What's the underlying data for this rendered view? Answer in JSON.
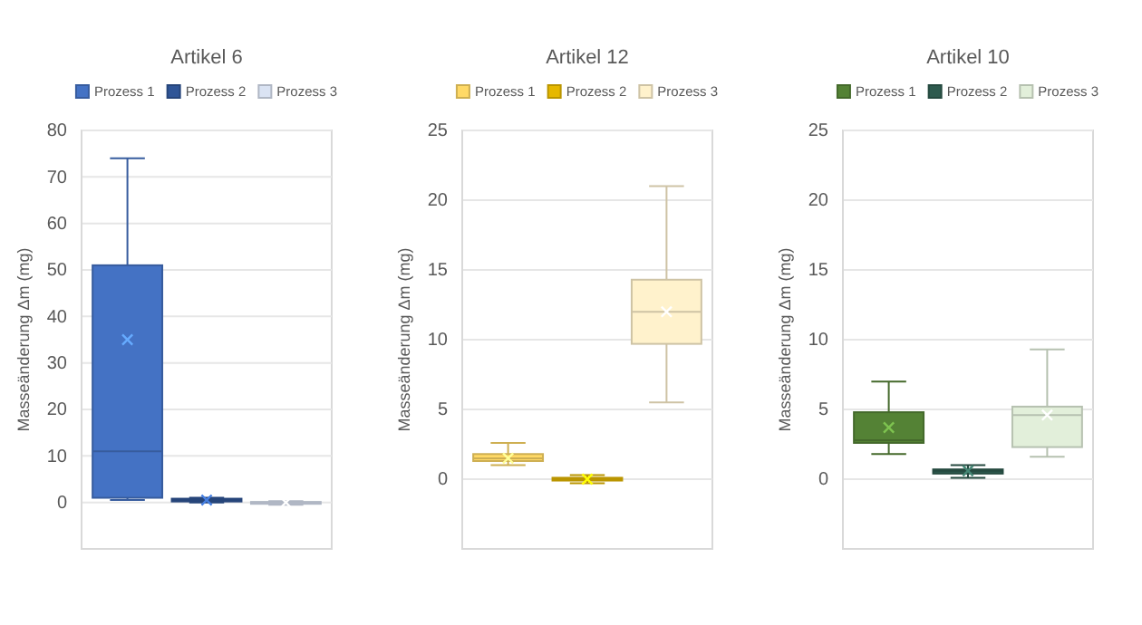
{
  "chart_data": [
    {
      "type": "box",
      "title": "Artikel 6",
      "ylabel": "Masseänderung Δm (mg)",
      "categories": [
        null
      ],
      "ylim": [
        -10,
        80
      ],
      "yticks": [
        0,
        10,
        20,
        30,
        40,
        50,
        60,
        70,
        80
      ],
      "grid": "y",
      "legend": "top",
      "tick_labels": "y",
      "series": [
        {
          "name": "Prozess 1",
          "color": "#4472c4",
          "boxes": [
            {
              "low": 0.5,
              "q1": 1,
              "median": 11,
              "q3": 51,
              "high": 74,
              "mean": 35
            }
          ]
        },
        {
          "name": "Prozess 2",
          "color": "#2f5597",
          "boxes": [
            {
              "low": 0,
              "q1": 0.2,
              "median": 0.5,
              "q3": 0.8,
              "high": 1,
              "mean": 0.5
            }
          ]
        },
        {
          "name": "Prozess 3",
          "color": "#dae3f3",
          "boxes": [
            {
              "low": -0.5,
              "q1": -0.3,
              "median": 0,
              "q3": 0.1,
              "high": 0.3,
              "mean": 0
            }
          ]
        }
      ]
    },
    {
      "type": "box",
      "title": "Artikel 12",
      "ylabel": "Masseänderung Δm (mg)",
      "categories": [
        null
      ],
      "ylim": [
        -5,
        25
      ],
      "yticks": [
        0,
        5,
        10,
        15,
        20,
        25
      ],
      "grid": "y",
      "legend": "top",
      "tick_labels": "y",
      "series": [
        {
          "name": "Prozess 1",
          "color": "#ffd966",
          "boxes": [
            {
              "low": 1,
              "q1": 1.3,
              "median": 1.5,
              "q3": 1.8,
              "high": 2.6,
              "mean": 1.5
            }
          ]
        },
        {
          "name": "Prozess 2",
          "color": "#e6b800",
          "boxes": [
            {
              "low": -0.3,
              "q1": -0.1,
              "median": 0,
              "q3": 0.1,
              "high": 0.3,
              "mean": 0
            }
          ]
        },
        {
          "name": "Prozess 3",
          "color": "#fff2cc",
          "boxes": [
            {
              "low": 5.5,
              "q1": 9.7,
              "median": 12,
              "q3": 14.3,
              "high": 21,
              "mean": 12
            }
          ]
        }
      ]
    },
    {
      "type": "box",
      "title": "Artikel 10",
      "ylabel": "Masseänderung Δm (mg)",
      "categories": [
        null
      ],
      "ylim": [
        -5,
        25
      ],
      "yticks": [
        0,
        5,
        10,
        15,
        20,
        25
      ],
      "grid": "y",
      "legend": "top",
      "tick_labels": "y",
      "series": [
        {
          "name": "Prozess 1",
          "color": "#548235",
          "boxes": [
            {
              "low": 1.8,
              "q1": 2.6,
              "median": 2.8,
              "q3": 4.8,
              "high": 7,
              "mean": 3.7
            }
          ]
        },
        {
          "name": "Prozess 2",
          "color": "#2e5a4e",
          "boxes": [
            {
              "low": 0.1,
              "q1": 0.4,
              "median": 0.6,
              "q3": 0.7,
              "high": 1,
              "mean": 0.6
            }
          ]
        },
        {
          "name": "Prozess 3",
          "color": "#e2efda",
          "boxes": [
            {
              "low": 1.6,
              "q1": 2.3,
              "median": 4.6,
              "q3": 5.2,
              "high": 9.3,
              "mean": 4.6
            }
          ]
        }
      ]
    }
  ]
}
